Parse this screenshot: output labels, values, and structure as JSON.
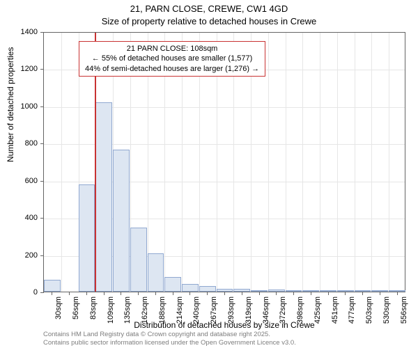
{
  "chart": {
    "type": "histogram",
    "title_line1": "21, PARN CLOSE, CREWE, CW1 4GD",
    "title_line2": "Size of property relative to detached houses in Crewe",
    "title_fontsize": 13,
    "xlabel": "Distribution of detached houses by size in Crewe",
    "ylabel": "Number of detached properties",
    "label_fontsize": 12,
    "tick_fontsize": 11,
    "background_color": "#ffffff",
    "grid_color": "#e6e6e6",
    "border_color": "#646464",
    "bar_fill": "#dde6f2",
    "bar_stroke": "#90a8d0",
    "ref_line_color": "#c83232",
    "ylim": [
      0,
      1400
    ],
    "ytick_step": 200,
    "yticks": [
      0,
      200,
      400,
      600,
      800,
      1000,
      1200,
      1400
    ],
    "x_categories": [
      "30sqm",
      "56sqm",
      "83sqm",
      "109sqm",
      "135sqm",
      "162sqm",
      "188sqm",
      "214sqm",
      "240sqm",
      "267sqm",
      "293sqm",
      "319sqm",
      "346sqm",
      "372sqm",
      "398sqm",
      "425sqm",
      "451sqm",
      "477sqm",
      "503sqm",
      "530sqm",
      "556sqm"
    ],
    "bar_values": [
      65,
      0,
      575,
      1020,
      765,
      345,
      205,
      80,
      40,
      30,
      15,
      15,
      8,
      12,
      3,
      3,
      2,
      2,
      2,
      2,
      2
    ],
    "ref_line_x_index": 3,
    "annotation": {
      "line1": "21 PARN CLOSE: 108sqm",
      "line2": "← 55% of detached houses are smaller (1,577)",
      "line3": "44% of semi-detached houses are larger (1,276) →",
      "border_color": "#c83232",
      "bg_color": "#ffffff",
      "fontsize": 11
    },
    "footer_line1": "Contains HM Land Registry data © Crown copyright and database right 2025.",
    "footer_line2": "Contains public sector information licensed under the Open Government Licence v3.0.",
    "footer_color": "#7d7d7d",
    "footer_fontsize": 9.5
  }
}
